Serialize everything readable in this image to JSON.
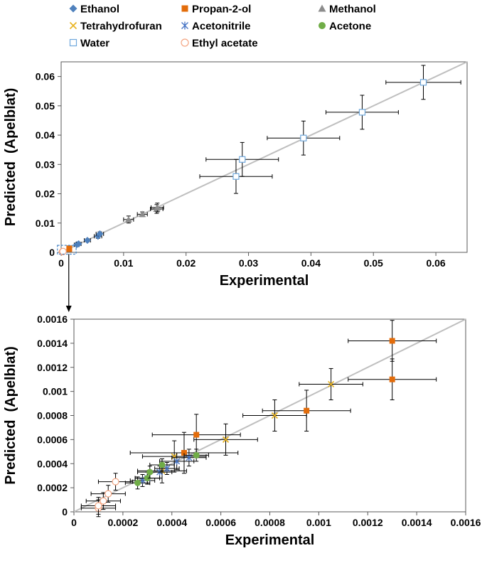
{
  "colors": {
    "Ethanol": "#4f81bd",
    "Propan-2-ol": "#e36c0a",
    "Methanol": "#8c8c8c",
    "Tetrahydrofuran": "#e8b321",
    "Acetonitrile": "#4472c4",
    "Acetone": "#70ad47",
    "Water": "#6fa8dc",
    "Ethyl acetate": "#f4a582",
    "parity_line": "#bfbfbf",
    "error_bar": "#000000",
    "zoom_box": "#4a86c5"
  },
  "legend": [
    {
      "name": "Ethanol",
      "marker": "diamond"
    },
    {
      "name": "Propan-2-ol",
      "marker": "square"
    },
    {
      "name": "Methanol",
      "marker": "triangle"
    },
    {
      "name": "Tetrahydrofuran",
      "marker": "x"
    },
    {
      "name": "Acetonitrile",
      "marker": "star"
    },
    {
      "name": "Acetone",
      "marker": "circle"
    },
    {
      "name": "Water",
      "marker": "open-square"
    },
    {
      "name": "Ethyl acetate",
      "marker": "open-circle"
    }
  ],
  "chart_data": [
    {
      "type": "scatter",
      "xlabel": "Experimental",
      "ylabel": "Predicted  (Apelblat)",
      "xlim": [
        0,
        0.065
      ],
      "ylim": [
        0,
        0.065
      ],
      "x_ticks": [
        "0",
        "0.01",
        "0.02",
        "0.03",
        "0.04",
        "0.05",
        "0.06"
      ],
      "y_ticks": [
        "0",
        "0.01",
        "0.02",
        "0.03",
        "0.04",
        "0.05",
        "0.06"
      ],
      "parity_line": true,
      "zoom_box": true,
      "series": [
        {
          "name": "Ethanol",
          "marker": "diamond",
          "points": [
            {
              "x": 0.0025,
              "y": 0.0026,
              "xerr": 0.0004,
              "yerr": 0.0004
            },
            {
              "x": 0.0028,
              "y": 0.0029,
              "xerr": 0.0004,
              "yerr": 0.0004
            },
            {
              "x": 0.0042,
              "y": 0.0041,
              "xerr": 0.0005,
              "yerr": 0.0005
            },
            {
              "x": 0.0059,
              "y": 0.0055,
              "xerr": 0.0006,
              "yerr": 0.0007
            },
            {
              "x": 0.0062,
              "y": 0.0063,
              "xerr": 0.0006,
              "yerr": 0.0007
            }
          ]
        },
        {
          "name": "Propan-2-ol",
          "marker": "square",
          "points": [
            {
              "x": 0.0013,
              "y": 0.0014,
              "xerr": 0.0002,
              "yerr": 0.0002
            },
            {
              "x": 0.0013,
              "y": 0.0011,
              "xerr": 0.0002,
              "yerr": 0.0002
            }
          ]
        },
        {
          "name": "Methanol",
          "marker": "triangle",
          "points": [
            {
              "x": 0.0108,
              "y": 0.0112,
              "xerr": 0.0008,
              "yerr": 0.0012
            },
            {
              "x": 0.013,
              "y": 0.013,
              "xerr": 0.0008,
              "yerr": 0.0008
            },
            {
              "x": 0.0153,
              "y": 0.0148,
              "xerr": 0.001,
              "yerr": 0.0015
            },
            {
              "x": 0.0154,
              "y": 0.0153,
              "xerr": 0.001,
              "yerr": 0.0015
            }
          ]
        },
        {
          "name": "Water",
          "marker": "open-square",
          "points": [
            {
              "x": 0.028,
              "y": 0.0259,
              "xerr": 0.0058,
              "yerr": 0.0058
            },
            {
              "x": 0.029,
              "y": 0.0317,
              "xerr": 0.0058,
              "yerr": 0.0058
            },
            {
              "x": 0.0388,
              "y": 0.039,
              "xerr": 0.0058,
              "yerr": 0.0058
            },
            {
              "x": 0.0482,
              "y": 0.0478,
              "xerr": 0.0058,
              "yerr": 0.0058
            },
            {
              "x": 0.058,
              "y": 0.058,
              "xerr": 0.006,
              "yerr": 0.0058
            }
          ]
        },
        {
          "name": "Ethyl acetate",
          "marker": "open-circle",
          "points": [
            {
              "x": 0.0002,
              "y": 0.0002,
              "xerr": 0.0002,
              "yerr": 0.0002
            },
            {
              "x": 0.0003,
              "y": 0.0003,
              "xerr": 0.0002,
              "yerr": 0.0002
            }
          ]
        }
      ]
    },
    {
      "type": "scatter",
      "xlabel": "Experimental",
      "ylabel": "Predicted  (Apelblat)",
      "xlim": [
        0,
        0.0016
      ],
      "ylim": [
        0,
        0.0016
      ],
      "x_ticks": [
        "0",
        "0.0002",
        "0.0004",
        "0.0006",
        "0.0008",
        "0.001",
        "0.0012",
        "0.0014",
        "0.0016"
      ],
      "y_ticks": [
        "0",
        "0.0002",
        "0.0004",
        "0.0006",
        "0.0008",
        "0.001",
        "0.0012",
        "0.0014",
        "0.0016"
      ],
      "parity_line": true,
      "series": [
        {
          "name": "Propan-2-ol",
          "marker": "square",
          "points": [
            {
              "x": 0.00045,
              "y": 0.00049,
              "xerr": 0.00022,
              "yerr": 0.00017
            },
            {
              "x": 0.0005,
              "y": 0.00064,
              "xerr": 0.00018,
              "yerr": 0.00017
            },
            {
              "x": 0.00095,
              "y": 0.00084,
              "xerr": 0.00018,
              "yerr": 0.00017
            },
            {
              "x": 0.0013,
              "y": 0.00142,
              "xerr": 0.00018,
              "yerr": 0.00017
            },
            {
              "x": 0.0013,
              "y": 0.0011,
              "xerr": 0.00018,
              "yerr": 0.00017
            }
          ]
        },
        {
          "name": "Tetrahydrofuran",
          "marker": "x",
          "points": [
            {
              "x": 0.00036,
              "y": 0.00034,
              "xerr": 0.0001,
              "yerr": 0.0001
            },
            {
              "x": 0.00041,
              "y": 0.00046,
              "xerr": 0.00013,
              "yerr": 0.00013
            },
            {
              "x": 0.00062,
              "y": 0.0006,
              "xerr": 0.00013,
              "yerr": 0.00013
            },
            {
              "x": 0.00082,
              "y": 0.0008,
              "xerr": 0.00013,
              "yerr": 0.00013
            },
            {
              "x": 0.00105,
              "y": 0.00106,
              "xerr": 0.00013,
              "yerr": 0.00013
            }
          ]
        },
        {
          "name": "Acetonitrile",
          "marker": "star",
          "points": [
            {
              "x": 0.00028,
              "y": 0.00026,
              "xerr": 5e-05,
              "yerr": 5e-05
            },
            {
              "x": 0.0003,
              "y": 0.00028,
              "xerr": 5e-05,
              "yerr": 5e-05
            },
            {
              "x": 0.00035,
              "y": 0.00033,
              "xerr": 5e-05,
              "yerr": 5e-05
            },
            {
              "x": 0.00038,
              "y": 0.00036,
              "xerr": 5e-05,
              "yerr": 5e-05
            },
            {
              "x": 0.00042,
              "y": 0.00042,
              "xerr": 7e-05,
              "yerr": 7e-05
            },
            {
              "x": 0.00047,
              "y": 0.00045,
              "xerr": 7e-05,
              "yerr": 7e-05
            }
          ]
        },
        {
          "name": "Acetone",
          "marker": "circle",
          "points": [
            {
              "x": 0.00026,
              "y": 0.00024,
              "xerr": 5e-05,
              "yerr": 5e-05
            },
            {
              "x": 0.0003,
              "y": 0.00028,
              "xerr": 5e-05,
              "yerr": 5e-05
            },
            {
              "x": 0.00031,
              "y": 0.00033,
              "xerr": 5e-05,
              "yerr": 5e-05
            },
            {
              "x": 0.00036,
              "y": 0.00039,
              "xerr": 5e-05,
              "yerr": 5e-05
            },
            {
              "x": 0.0005,
              "y": 0.00047,
              "xerr": 5e-05,
              "yerr": 5e-05
            }
          ]
        },
        {
          "name": "Ethyl acetate",
          "marker": "open-circle",
          "points": [
            {
              "x": 0.0001,
              "y": 3e-05,
              "xerr": 7e-05,
              "yerr": 7e-05
            },
            {
              "x": 0.00012,
              "y": 9e-05,
              "xerr": 7e-05,
              "yerr": 7e-05
            },
            {
              "x": 0.0001,
              "y": 5e-05,
              "xerr": 7e-05,
              "yerr": 7e-05
            },
            {
              "x": 0.00017,
              "y": 0.00025,
              "xerr": 7e-05,
              "yerr": 7e-05
            },
            {
              "x": 0.00014,
              "y": 0.00015,
              "xerr": 7e-05,
              "yerr": 7e-05
            }
          ]
        }
      ]
    }
  ]
}
